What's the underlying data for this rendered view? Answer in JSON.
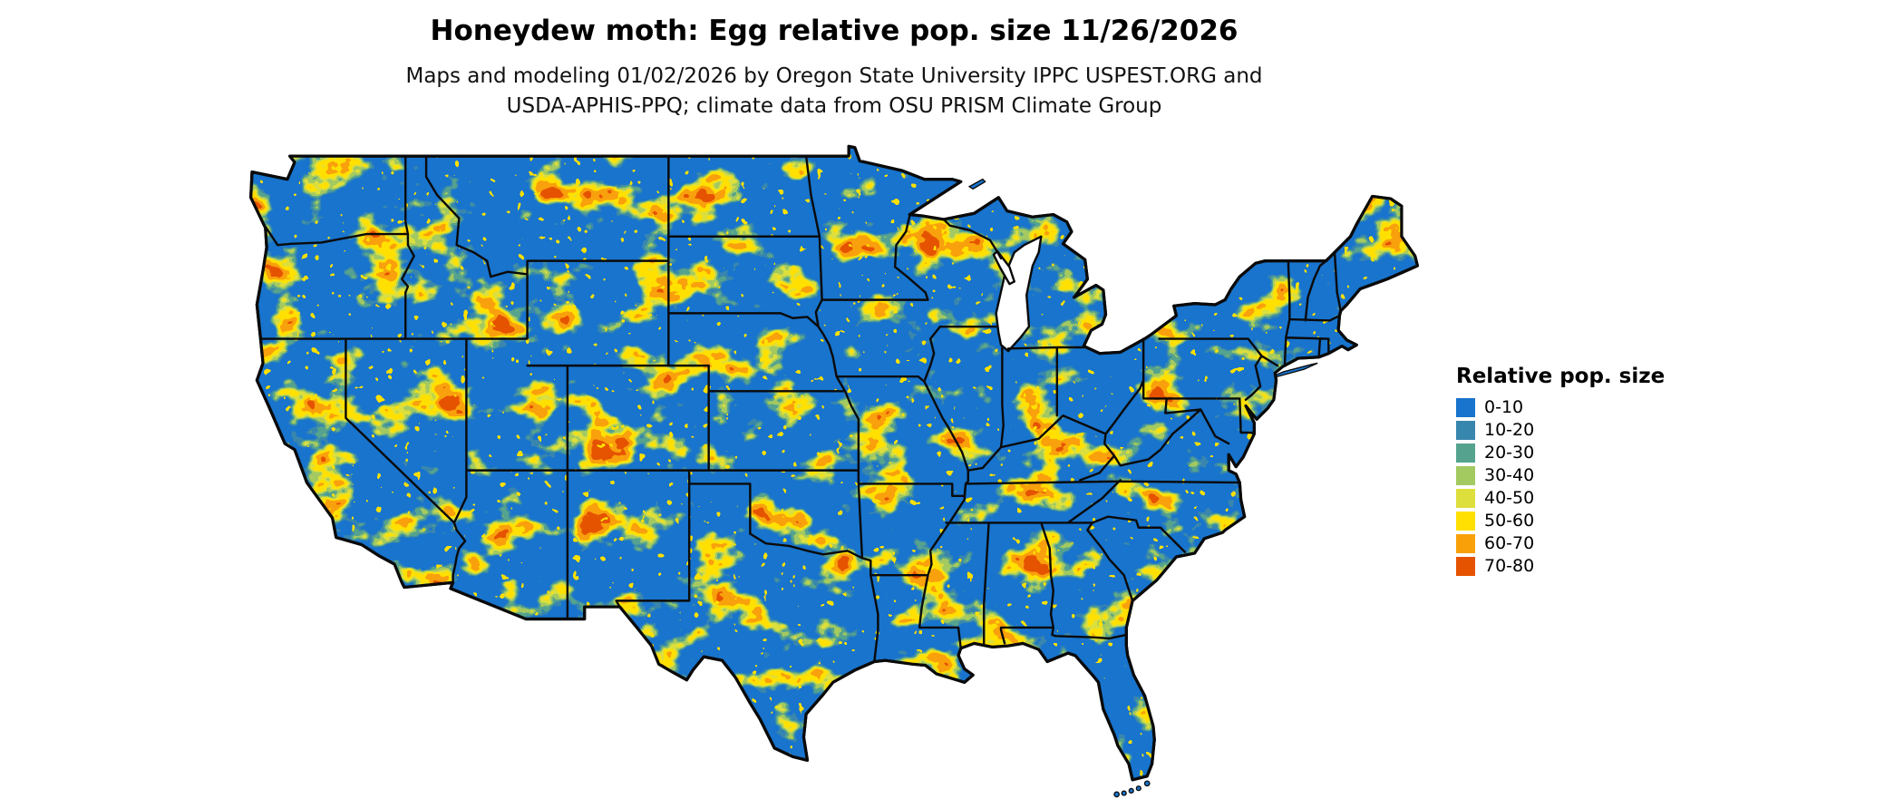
{
  "header": {
    "title": "Honeydew moth: Egg relative pop. size 11/26/2026",
    "subtitle_line1": "Maps and modeling 01/02/2026 by Oregon State University IPPC USPEST.ORG and",
    "subtitle_line2": "USDA-APHIS-PPQ; climate data from OSU PRISM Climate Group"
  },
  "legend": {
    "title": "Relative pop. size",
    "items": [
      {
        "label": "0-10",
        "color": "#1874CD"
      },
      {
        "label": "10-20",
        "color": "#3786AD"
      },
      {
        "label": "20-30",
        "color": "#55A38E"
      },
      {
        "label": "30-40",
        "color": "#A3C961"
      },
      {
        "label": "40-50",
        "color": "#DCDF3C"
      },
      {
        "label": "50-60",
        "color": "#FFE000"
      },
      {
        "label": "60-70",
        "color": "#F9A008"
      },
      {
        "label": "70-80",
        "color": "#E65300"
      }
    ]
  },
  "map": {
    "region_label": "Continental United States raster map of relative population size",
    "base_color": "#1874CD",
    "boundary_color": "#0a0a0a",
    "water_background": "#ffffff"
  }
}
